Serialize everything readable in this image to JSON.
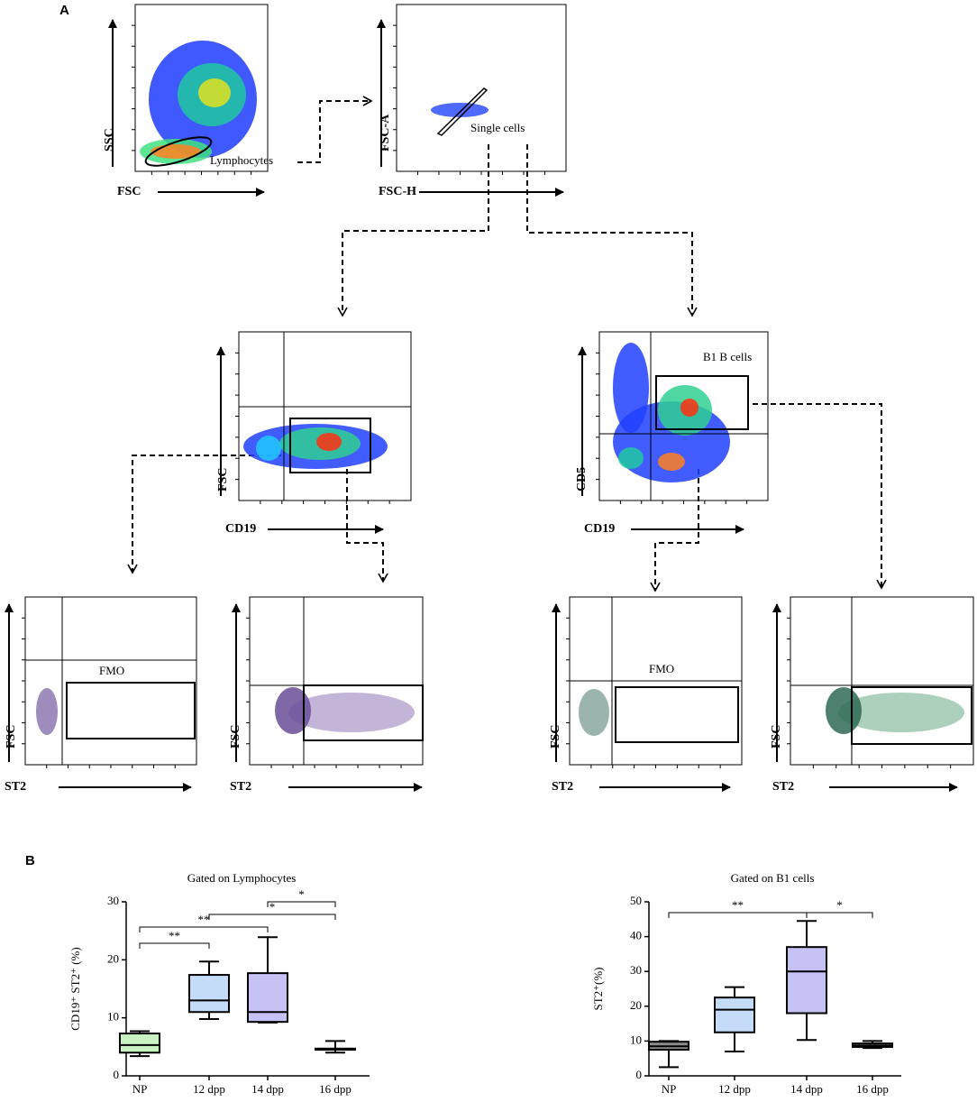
{
  "panel_labels": [
    "A",
    "B"
  ],
  "panel_a": {
    "plots": [
      {
        "x_label": "FSC",
        "y_label": "SSC",
        "gate_label": "Lymphocytes"
      },
      {
        "x_label": "FSC-H",
        "y_label": "FSC-A",
        "gate_label": "Single cells"
      },
      {
        "x_label": "CD19",
        "y_label": "FSC"
      },
      {
        "x_label": "CD19",
        "y_label": "CD5",
        "gate_label": "B1 B cells"
      },
      {
        "x_label": "ST2",
        "y_label": "FSC",
        "gate_label": "FMO"
      },
      {
        "x_label": "ST2",
        "y_label": "FSC"
      },
      {
        "x_label": "ST2",
        "y_label": "FSC",
        "gate_label": "FMO"
      },
      {
        "x_label": "ST2",
        "y_label": "FSC"
      }
    ]
  },
  "chart_data": [
    {
      "type": "box",
      "title": "Gated on Lymphocytes",
      "y_label": "CD19⁺ ST2⁺ (%)",
      "categories": [
        "NP",
        "12 dpp",
        "14 dpp",
        "16 dpp"
      ],
      "whisker_low": [
        3.4,
        9.8,
        9.2,
        4.0
      ],
      "q1": [
        4.0,
        11.0,
        9.3,
        4.5
      ],
      "median": [
        5.3,
        13.0,
        11.0,
        4.6
      ],
      "q3": [
        7.3,
        17.4,
        17.7,
        4.7
      ],
      "whisker_high": [
        7.7,
        19.7,
        23.9,
        6.0
      ],
      "colors": [
        "#c8f2c2",
        "#c4dcf8",
        "#c6c2f6",
        "#d8d8d8"
      ],
      "ylim": [
        0,
        30
      ],
      "yticks": [
        0,
        10,
        20,
        30
      ],
      "annotations": [
        {
          "text": "**",
          "between": [
            "NP",
            "12 dpp"
          ]
        },
        {
          "text": "**",
          "between": [
            "NP",
            "14 dpp"
          ]
        },
        {
          "text": "*",
          "between": [
            "12 dpp",
            "16 dpp"
          ]
        },
        {
          "text": "*",
          "between": [
            "14 dpp",
            "16 dpp"
          ]
        }
      ]
    },
    {
      "type": "box",
      "title": "Gated on B1 cells",
      "y_label": "ST2⁺(%)",
      "categories": [
        "NP",
        "12 dpp",
        "14 dpp",
        "16 dpp"
      ],
      "whisker_low": [
        2.5,
        7.0,
        10.3,
        8.0
      ],
      "q1": [
        7.5,
        12.5,
        18.0,
        8.3
      ],
      "median": [
        8.5,
        19.0,
        30.0,
        8.7
      ],
      "q3": [
        9.8,
        22.5,
        37.0,
        9.3
      ],
      "whisker_high": [
        10.0,
        25.5,
        44.5,
        10.0
      ],
      "colors": [
        "#8a8a8a",
        "#c4dcf8",
        "#c6c2f6",
        "#9a9a9a"
      ],
      "ylim": [
        0,
        50
      ],
      "yticks": [
        0,
        10,
        20,
        30,
        40,
        50
      ],
      "annotations": [
        {
          "text": "**",
          "between": [
            "NP",
            "14 dpp"
          ]
        },
        {
          "text": "*",
          "between": [
            "14 dpp",
            "16 dpp"
          ]
        }
      ]
    }
  ]
}
